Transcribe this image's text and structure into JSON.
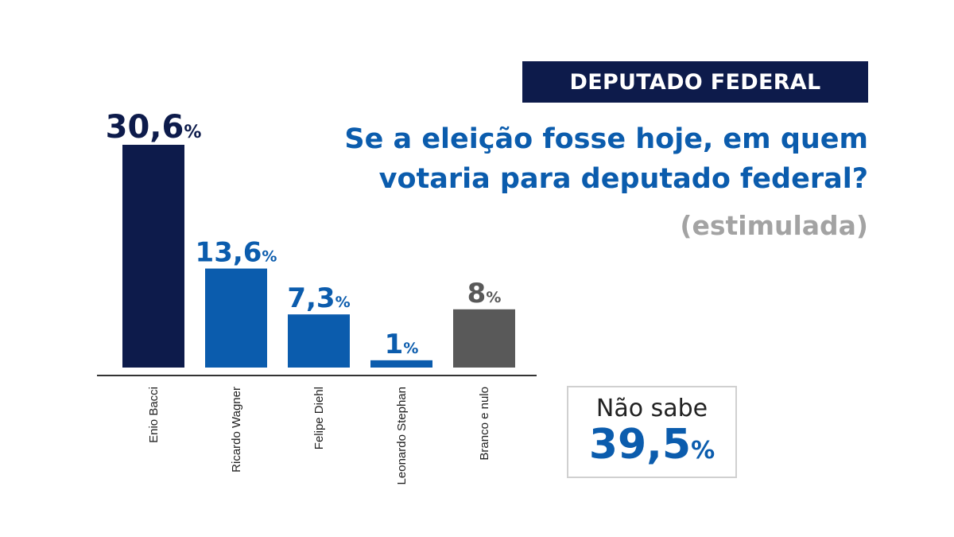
{
  "header": {
    "badge": "DEPUTADO FEDERAL",
    "question": "Se a eleição fosse hoje, em quem votaria para deputado federal?",
    "note": "(estimulada)"
  },
  "colors": {
    "navy": "#0d1b4b",
    "blue": "#0b5cad",
    "gray": "#595959",
    "note_gray": "#a3a3a3"
  },
  "chart_data": {
    "type": "bar",
    "categories": [
      "Enio Bacci",
      "Ricardo Wagner",
      "Felipe Diehl",
      "Leonardo Stephan",
      "Branco e nulo"
    ],
    "values": [
      30.6,
      13.6,
      7.3,
      1,
      8
    ],
    "value_labels": [
      "30,6",
      "13,6",
      "7,3",
      "1",
      "8"
    ],
    "unit": "%",
    "bar_colors": [
      "#0d1b4b",
      "#0b5cad",
      "#0b5cad",
      "#0b5cad",
      "#595959"
    ],
    "title": "",
    "xlabel": "",
    "ylabel": "",
    "ylim": [
      0,
      30.6
    ],
    "grid": false,
    "legend": "none"
  },
  "nao_sabe": {
    "label": "Não sabe",
    "value": "39,5",
    "unit": "%"
  }
}
